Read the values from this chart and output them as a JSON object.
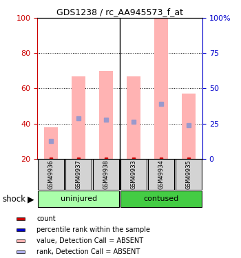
{
  "title": "GDS1238 / rc_AA945573_f_at",
  "samples": [
    "GSM49936",
    "GSM49937",
    "GSM49938",
    "GSM49933",
    "GSM49934",
    "GSM49935"
  ],
  "bar_top_pink": [
    38,
    67,
    70,
    67,
    100,
    57
  ],
  "rank_marker": [
    30,
    43,
    42,
    41,
    51,
    39
  ],
  "ylim_left": [
    20,
    100
  ],
  "yticks_left": [
    20,
    40,
    60,
    80,
    100
  ],
  "ytick_labels_right": [
    "0",
    "25",
    "50",
    "75",
    "100%"
  ],
  "left_axis_color": "#cc0000",
  "right_axis_color": "#0000cc",
  "pink_bar_color": "#ffb3b3",
  "rank_marker_color": "#9999cc",
  "count_color": "#cc0000",
  "uninjured_color": "#aaffaa",
  "contused_color": "#44cc44",
  "label_bg_color": "#d3d3d3",
  "legend_items": [
    "count",
    "percentile rank within the sample",
    "value, Detection Call = ABSENT",
    "rank, Detection Call = ABSENT"
  ],
  "legend_colors": [
    "#cc0000",
    "#0000cc",
    "#ffb3b3",
    "#b0b0ee"
  ],
  "shock_label": "shock",
  "figsize": [
    3.5,
    3.75
  ],
  "dpi": 100
}
